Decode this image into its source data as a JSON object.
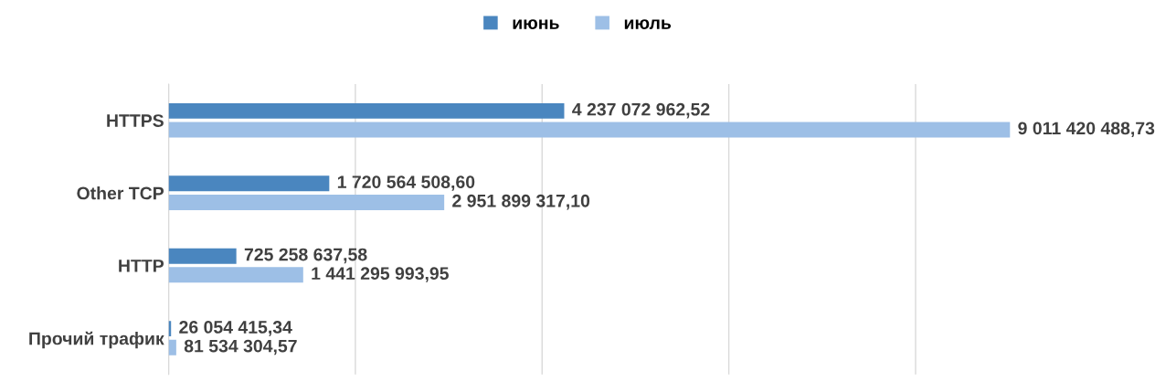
{
  "chart_data": {
    "type": "bar",
    "orientation": "horizontal",
    "categories": [
      "HTTPS",
      "Other TCP",
      "HTTP",
      "Прочий трафик"
    ],
    "series": [
      {
        "name": "июнь",
        "color": "#4a86bf",
        "values": [
          4237072962.52,
          1720564508.6,
          725258637.58,
          26054415.34
        ],
        "value_labels": [
          "4 237 072 962,52",
          "1 720 564 508,60",
          "725 258 637,58",
          "26 054 415,34"
        ]
      },
      {
        "name": "июль",
        "color": "#9dbfe6",
        "values": [
          9011420488.73,
          2951899317.1,
          1441295993.95,
          81534304.57
        ],
        "value_labels": [
          "9 011 420 488,73",
          "2 951 899 317,10",
          "1 441 295 993,95",
          "81 534 304,57"
        ]
      }
    ],
    "xticks": [
      {
        "value": 0,
        "label": null
      },
      {
        "value": 2000000000,
        "label": null
      },
      {
        "value": 4000000000,
        "label": null
      },
      {
        "value": 6000000000,
        "label": null
      },
      {
        "value": 8000000000,
        "label": null
      }
    ],
    "tick_labels": "y",
    "grid": "x",
    "legend": "top"
  }
}
